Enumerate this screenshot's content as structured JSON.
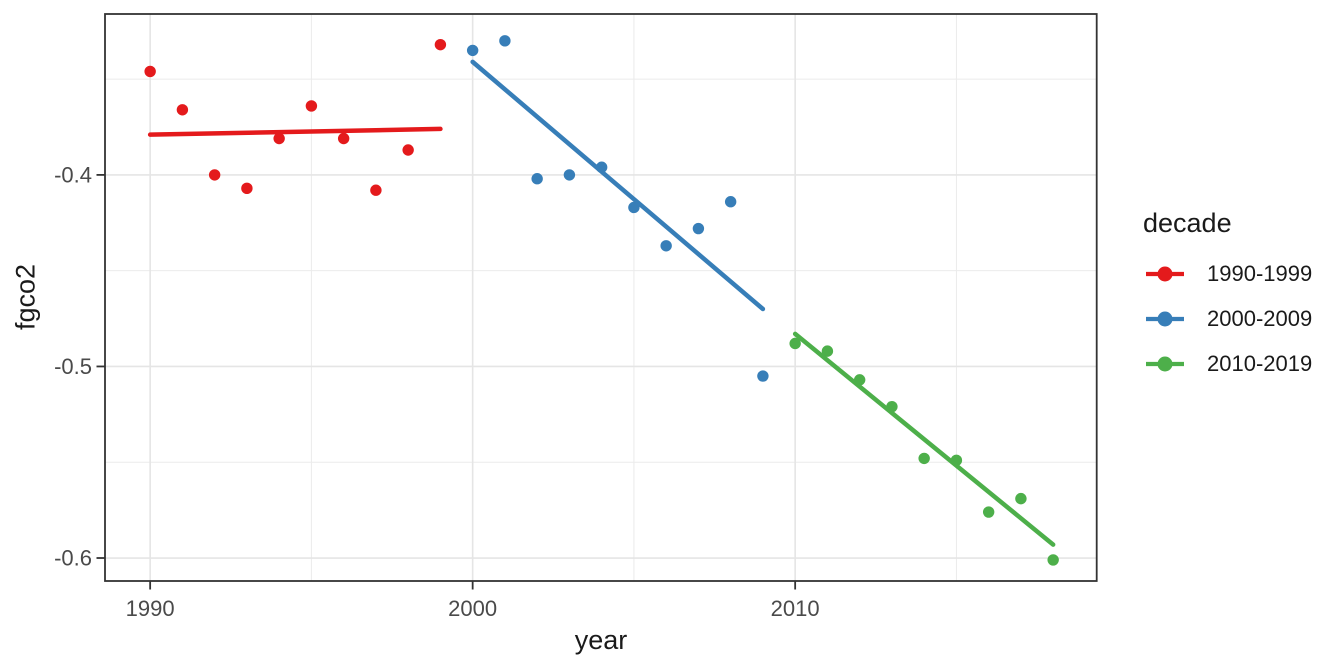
{
  "chart_data": {
    "type": "scatter",
    "title": "",
    "xlabel": "year",
    "ylabel": "fgco2",
    "xlim": [
      1988.6,
      2019.35
    ],
    "ylim": [
      -0.612,
      -0.316
    ],
    "grid": "on",
    "legend_position": "right",
    "x_axis": {
      "major_ticks": [
        1990,
        2000,
        2010
      ],
      "tick_labels": [
        "1990",
        "2000",
        "2010"
      ],
      "minor_ticks": [
        1995,
        2005,
        2015
      ]
    },
    "y_axis": {
      "major_ticks": [
        -0.4,
        -0.5,
        -0.6
      ],
      "tick_labels": [
        "-0.4",
        "-0.5",
        "-0.6"
      ],
      "minor_ticks": [
        -0.35,
        -0.45,
        -0.55
      ]
    },
    "legend": {
      "title": "decade"
    },
    "series": [
      {
        "name": "1990-1999",
        "color": "#E41A1C",
        "x": [
          1990,
          1991,
          1992,
          1993,
          1994,
          1995,
          1996,
          1997,
          1998,
          1999
        ],
        "y": [
          -0.346,
          -0.366,
          -0.4,
          -0.407,
          -0.381,
          -0.364,
          -0.381,
          -0.408,
          -0.387,
          -0.332
        ],
        "trend": {
          "x": [
            1990,
            1999
          ],
          "y": [
            -0.379,
            -0.376
          ]
        }
      },
      {
        "name": "2000-2009",
        "color": "#377EB8",
        "x": [
          2000,
          2001,
          2002,
          2003,
          2004,
          2005,
          2006,
          2007,
          2008,
          2009
        ],
        "y": [
          -0.335,
          -0.33,
          -0.402,
          -0.4,
          -0.396,
          -0.417,
          -0.437,
          -0.428,
          -0.414,
          -0.505
        ],
        "trend": {
          "x": [
            2000,
            2009
          ],
          "y": [
            -0.341,
            -0.47
          ]
        }
      },
      {
        "name": "2010-2019",
        "color": "#4DAF4A",
        "x": [
          2010,
          2011,
          2012,
          2013,
          2014,
          2015,
          2016,
          2017,
          2018
        ],
        "y": [
          -0.488,
          -0.492,
          -0.507,
          -0.521,
          -0.548,
          -0.549,
          -0.576,
          -0.569,
          -0.601
        ],
        "trend": {
          "x": [
            2010,
            2018
          ],
          "y": [
            -0.483,
            -0.593
          ]
        }
      }
    ],
    "style": {
      "panel_border_color": "#333333",
      "major_grid_color": "#E5E5E5",
      "minor_grid_color": "#EBEBEB",
      "tick_color": "#333333",
      "tick_label_color": "#4a4a4a"
    }
  }
}
